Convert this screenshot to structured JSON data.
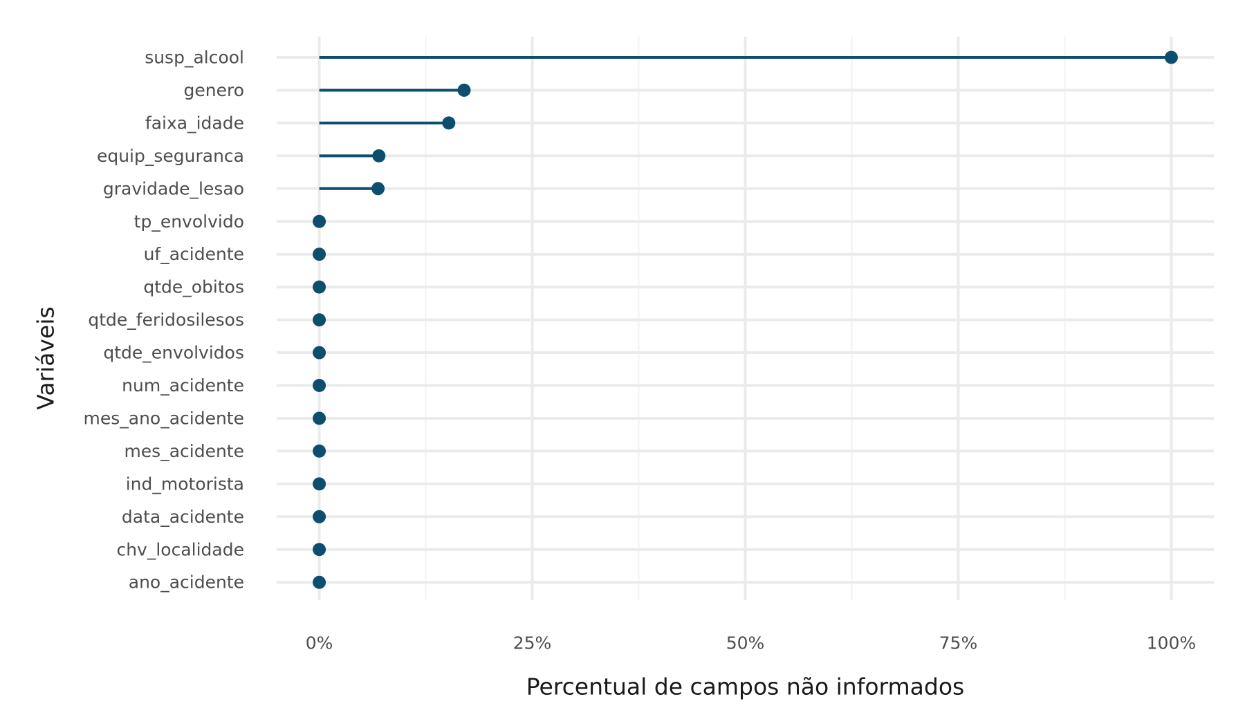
{
  "chart_data": {
    "type": "lollipop",
    "title": "",
    "xlabel": "Percentual de campos não informados",
    "ylabel": "Variáveis",
    "xlim": [
      -5,
      105
    ],
    "x_ticks": [
      0,
      25,
      50,
      75,
      100
    ],
    "x_tick_labels": [
      "0%",
      "25%",
      "50%",
      "75%",
      "100%"
    ],
    "grid": true,
    "categories": [
      "susp_alcool",
      "genero",
      "faixa_idade",
      "equip_seguranca",
      "gravidade_lesao",
      "tp_envolvido",
      "uf_acidente",
      "qtde_obitos",
      "qtde_feridosilesos",
      "qtde_envolvidos",
      "num_acidente",
      "mes_ano_acidente",
      "mes_acidente",
      "ind_motorista",
      "data_acidente",
      "chv_localidade",
      "ano_acidente"
    ],
    "values": [
      100,
      17,
      15.2,
      7,
      6.9,
      0,
      0,
      0,
      0,
      0,
      0,
      0,
      0,
      0,
      0,
      0,
      0
    ],
    "colors": {
      "point": "#0d4d6e",
      "segment": "#0d4d6e"
    }
  }
}
